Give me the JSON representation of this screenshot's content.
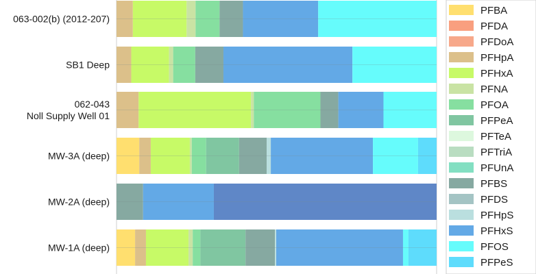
{
  "chart_data": {
    "type": "bar",
    "orientation": "horizontal",
    "stacked": "percent",
    "grid": true,
    "legend_position": "right",
    "categories": [
      [
        "063-002(b) (2012-207)"
      ],
      [
        "SB1 Deep"
      ],
      [
        "062-043",
        "Noll Supply Well 01"
      ],
      [
        "MW-3A (deep)"
      ],
      [
        "MW-2A (deep)"
      ],
      [
        "MW-1A (deep)"
      ]
    ],
    "series": [
      {
        "name": "PFBA",
        "color": "#FFDF6F",
        "values": [
          0,
          0,
          0,
          7.1,
          0,
          5.8
        ]
      },
      {
        "name": "PFDA",
        "color": "#F99F7F",
        "values": [
          0,
          0,
          0,
          0,
          0,
          0
        ]
      },
      {
        "name": "PFDoA",
        "color": "#F7A88A",
        "values": [
          0,
          0,
          0,
          0,
          0,
          0
        ]
      },
      {
        "name": "PFHpA",
        "color": "#DCC08A",
        "values": [
          5.1,
          4.6,
          6.9,
          3.6,
          0,
          3.4
        ]
      },
      {
        "name": "PFHxA",
        "color": "#C7FA67",
        "values": [
          16.8,
          11.8,
          35.1,
          12.2,
          0,
          13.3
        ]
      },
      {
        "name": "PFNA",
        "color": "#C9E3A4",
        "values": [
          2.8,
          1.3,
          0.9,
          0.6,
          0,
          1.3
        ]
      },
      {
        "name": "PFOA",
        "color": "#86DFA0",
        "values": [
          7.5,
          6.9,
          20.8,
          4.5,
          0,
          2.4
        ]
      },
      {
        "name": "PFPeA",
        "color": "#80C6A1",
        "values": [
          0,
          0,
          0,
          10.3,
          0,
          14.1
        ]
      },
      {
        "name": "PFTeA",
        "color": "#DDF8DE",
        "values": [
          0,
          0,
          0,
          0,
          0,
          0
        ]
      },
      {
        "name": "PFTriA",
        "color": "#B9DDC1",
        "values": [
          0,
          0,
          0,
          0,
          0,
          0
        ]
      },
      {
        "name": "PFUnA",
        "color": "#83DFC2",
        "values": [
          0,
          0,
          0,
          0,
          0,
          0
        ]
      },
      {
        "name": "PFBS",
        "color": "#86A9A1",
        "values": [
          7.3,
          8.8,
          5.6,
          8.6,
          8.3,
          9.2
        ]
      },
      {
        "name": "PFDS",
        "color": "#A4C4C4",
        "values": [
          0,
          0,
          0,
          0,
          0,
          0
        ]
      },
      {
        "name": "PFHpS",
        "color": "#BADFDF",
        "values": [
          0,
          0,
          0,
          1.3,
          0,
          0.4
        ]
      },
      {
        "name": "PFHxS",
        "color": "#63A9E6",
        "values": [
          23.5,
          40.3,
          14.1,
          31.9,
          22.1,
          39.6
        ]
      },
      {
        "name": "PFOS",
        "color": "#66FCFC",
        "values": [
          37.0,
          26.3,
          16.6,
          14.1,
          0,
          1.7
        ]
      },
      {
        "name": "PFPeS",
        "color": "#5EDCFC",
        "values": [
          0,
          0,
          0,
          5.8,
          0,
          8.8
        ]
      },
      {
        "name": "",
        "color": "#5F87C7",
        "values": [
          0,
          0,
          0,
          0,
          69.6,
          0
        ]
      }
    ]
  }
}
